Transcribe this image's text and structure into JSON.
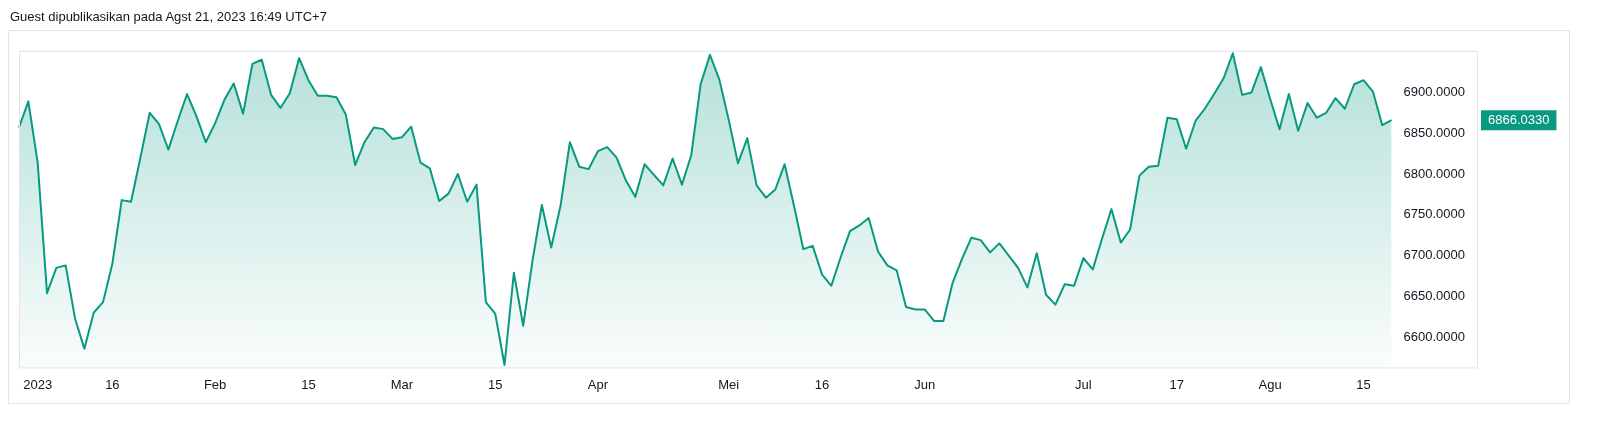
{
  "chart_data": {
    "type": "area",
    "title": "Guest dipublikasikan pada Agst 21, 2023 16:49 UTC+7",
    "categories": [
      null,
      null,
      "2023",
      null,
      null,
      null,
      null,
      null,
      null,
      null,
      "16",
      null,
      null,
      null,
      null,
      null,
      null,
      null,
      null,
      null,
      null,
      "Feb",
      null,
      null,
      null,
      null,
      null,
      null,
      null,
      null,
      null,
      "15",
      null,
      null,
      null,
      null,
      null,
      null,
      null,
      null,
      null,
      "Mar",
      null,
      null,
      null,
      null,
      null,
      null,
      null,
      null,
      null,
      "15",
      null,
      null,
      null,
      null,
      null,
      null,
      null,
      null,
      null,
      null,
      "Apr",
      null,
      null,
      null,
      null,
      null,
      null,
      null,
      null,
      null,
      null,
      null,
      null,
      null,
      "Mei",
      null,
      null,
      null,
      null,
      null,
      null,
      null,
      null,
      null,
      "16",
      null,
      null,
      null,
      null,
      null,
      null,
      null,
      null,
      null,
      null,
      "Jun",
      null,
      null,
      null,
      null,
      null,
      null,
      null,
      null,
      null,
      null,
      null,
      null,
      null,
      null,
      null,
      null,
      "Jul",
      null,
      null,
      null,
      null,
      null,
      null,
      null,
      null,
      null,
      "17",
      null,
      null,
      null,
      null,
      null,
      null,
      null,
      null,
      null,
      "Agu",
      null,
      null,
      null,
      null,
      null,
      null,
      null,
      null,
      null,
      "15",
      null,
      null,
      null
    ],
    "series": [
      {
        "color": "#089981",
        "values": [
          6857,
          6889,
          6814,
          6654,
          6685,
          6688,
          6623,
          6586,
          6630,
          6643,
          6690,
          6768,
          6766,
          6820,
          6875,
          6861,
          6830,
          6865,
          6898,
          6871,
          6839,
          6862,
          6891,
          6911,
          6874,
          6935,
          6940,
          6897,
          6881,
          6899,
          6942,
          6915,
          6896,
          6896,
          6894,
          6873,
          6811,
          6839,
          6857,
          6855,
          6843,
          6845,
          6858,
          6814,
          6807,
          6767,
          6776,
          6800,
          6766,
          6787,
          6643,
          6629,
          6566,
          6679,
          6614,
          6694,
          6762,
          6710,
          6761,
          6839,
          6809,
          6806,
          6828,
          6833,
          6820,
          6792,
          6772,
          6812,
          6799,
          6786,
          6819,
          6787,
          6823,
          6910,
          6946,
          6916,
          6867,
          6813,
          6844,
          6786,
          6771,
          6781,
          6812,
          6761,
          6708,
          6712,
          6677,
          6663,
          6698,
          6730,
          6737,
          6746,
          6705,
          6688,
          6682,
          6637,
          6634,
          6634,
          6620,
          6620,
          6667,
          6696,
          6722,
          6719,
          6704,
          6715,
          6700,
          6685,
          6661,
          6703,
          6652,
          6640,
          6665,
          6663,
          6697,
          6683,
          6721,
          6757,
          6716,
          6732,
          6798,
          6809,
          6810,
          6869,
          6867,
          6831,
          6865,
          6880,
          6898,
          6917,
          6948,
          6897,
          6900,
          6931,
          6892,
          6855,
          6898,
          6853,
          6887,
          6869,
          6875,
          6893,
          6880,
          6910,
          6915,
          6901,
          6860,
          6866.033
        ]
      }
    ],
    "ylim": [
      6563,
      6951
    ],
    "yticks": [
      {
        "value": 6600,
        "label": "6600.0000"
      },
      {
        "value": 6650,
        "label": "6650.0000"
      },
      {
        "value": 6700,
        "label": "6700.0000"
      },
      {
        "value": 6750,
        "label": "6750.0000"
      },
      {
        "value": 6800,
        "label": "6800.0000"
      },
      {
        "value": 6850,
        "label": "6850.0000"
      },
      {
        "value": 6900,
        "label": "6900.0000"
      }
    ],
    "annotations": [
      "6866.0330"
    ]
  }
}
